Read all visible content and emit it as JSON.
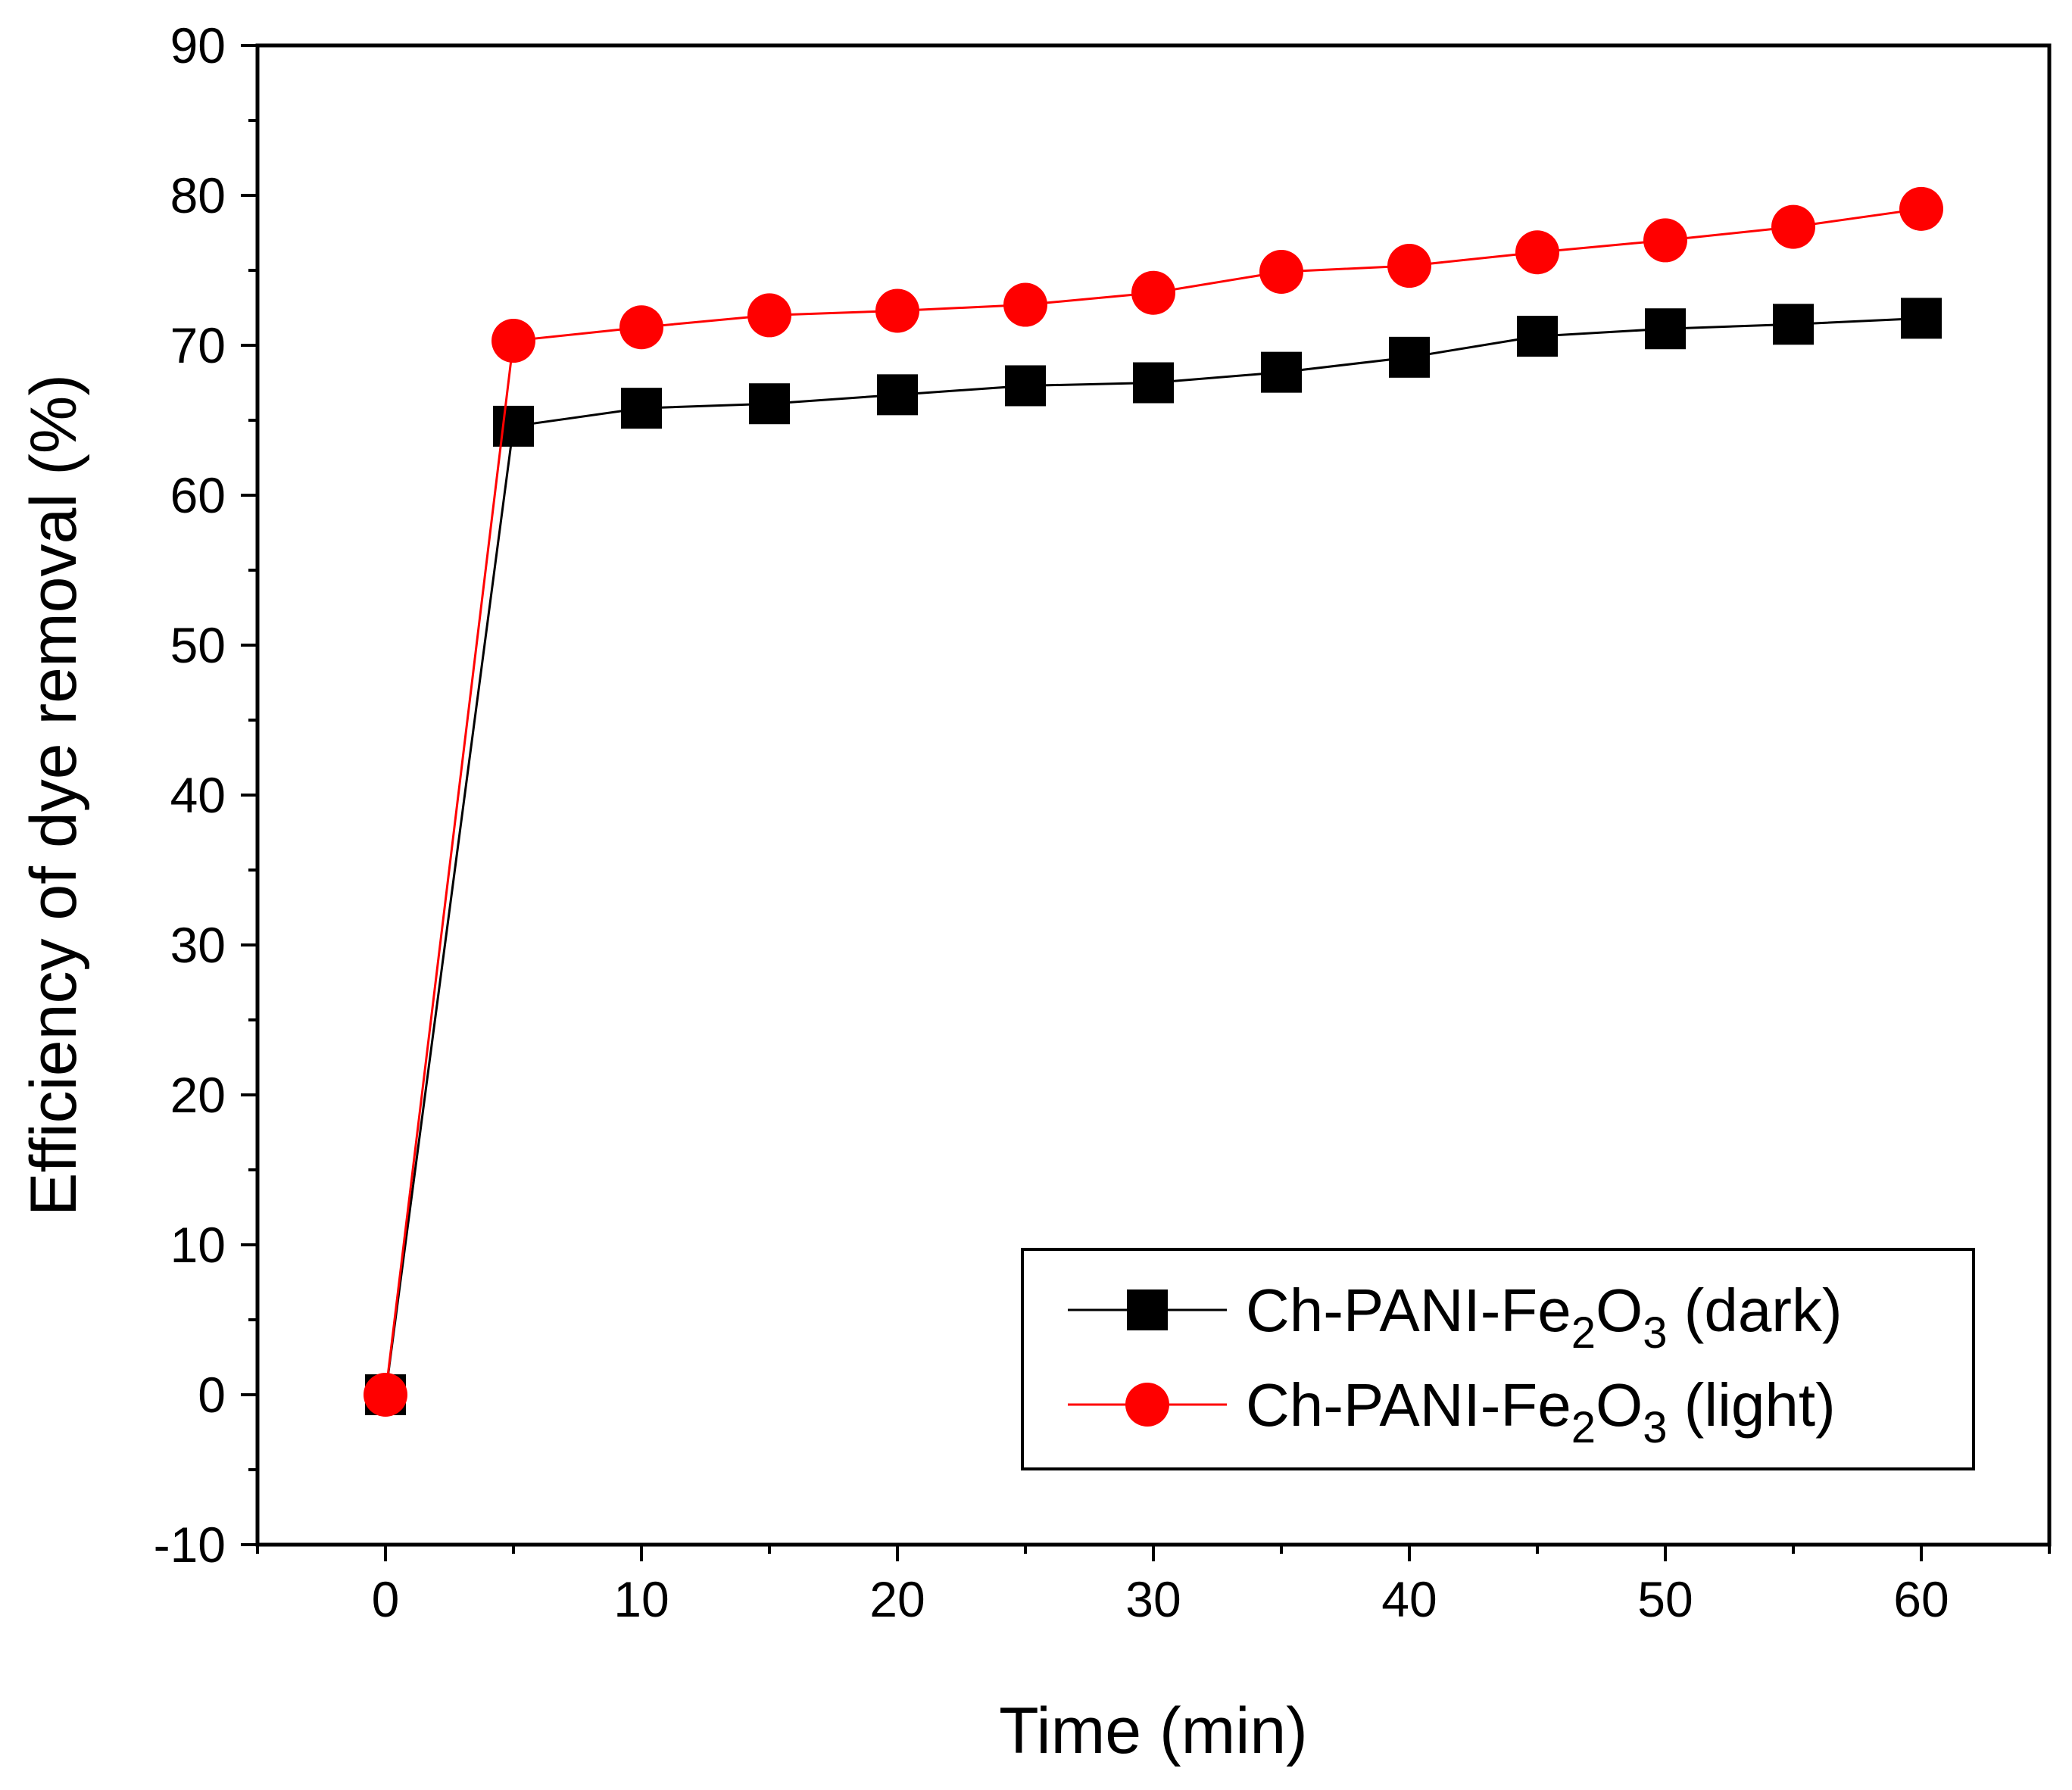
{
  "chart_data": {
    "type": "line",
    "xlabel": "Time (min)",
    "ylabel": "Efficiency of dye removal (%)",
    "xlim": [
      -5,
      65
    ],
    "ylim": [
      -10,
      90
    ],
    "x_ticks": [
      0,
      10,
      20,
      30,
      40,
      50,
      60
    ],
    "x_tick_labels": [
      "0",
      "10",
      "20",
      "30",
      "40",
      "50",
      "60"
    ],
    "y_ticks": [
      -10,
      0,
      10,
      20,
      30,
      40,
      50,
      60,
      70,
      80,
      90
    ],
    "y_tick_labels": [
      "-10",
      "0",
      "10",
      "20",
      "30",
      "40",
      "50",
      "60",
      "70",
      "80",
      "90"
    ],
    "x_minor_step": 5,
    "y_minor_step": 5,
    "grid": false,
    "legend_position": "bottom-right",
    "x": [
      0,
      5,
      10,
      15,
      20,
      25,
      30,
      35,
      40,
      45,
      50,
      55,
      60
    ],
    "series": [
      {
        "name": "Ch-PANI-Fe2O3 (dark)",
        "legend": {
          "prefix": "Ch-PANI-Fe",
          "sub1": "2",
          "mid": "O",
          "sub2": "3",
          "suffix": " (dark)"
        },
        "marker": "square",
        "color": "#000000",
        "values": [
          0,
          64.6,
          65.8,
          66.1,
          66.7,
          67.3,
          67.5,
          68.2,
          69.2,
          70.6,
          71.1,
          71.4,
          71.8
        ]
      },
      {
        "name": "Ch-PANI-Fe2O3 (light)",
        "legend": {
          "prefix": "Ch-PANI-Fe",
          "sub1": "2",
          "mid": "O",
          "sub2": "3",
          "suffix": " (light)"
        },
        "marker": "circle",
        "color": "#ff0000",
        "values": [
          0,
          70.3,
          71.2,
          72.0,
          72.3,
          72.7,
          73.5,
          74.9,
          75.3,
          76.2,
          77.0,
          77.9,
          79.1
        ]
      }
    ]
  }
}
